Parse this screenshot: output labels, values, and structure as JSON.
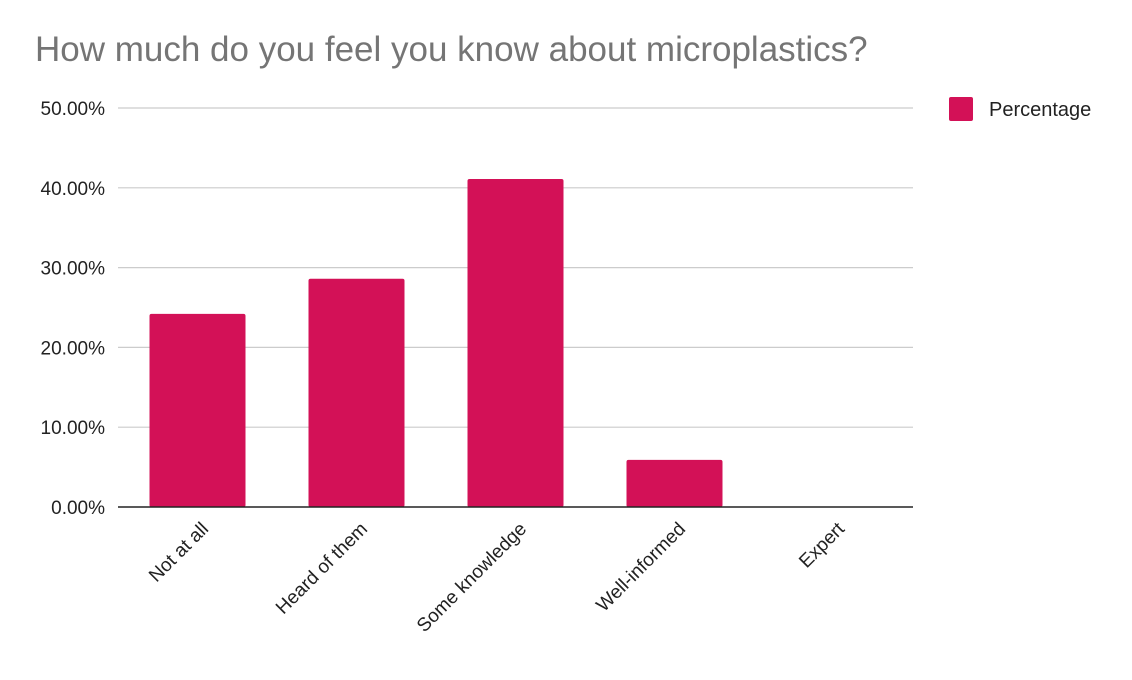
{
  "chart_data": {
    "type": "bar",
    "title": "How much do you feel you know about microplastics?",
    "categories": [
      "Not at all",
      "Heard of them",
      "Some knowledge",
      "Well-informed",
      "Expert"
    ],
    "series": [
      {
        "name": "Percentage",
        "values": [
          24.2,
          28.6,
          41.1,
          5.9,
          0.0
        ],
        "color": "#d31157"
      }
    ],
    "yticks": [
      "0.00%",
      "10.00%",
      "20.00%",
      "30.00%",
      "40.00%",
      "50.00%"
    ],
    "ylim": [
      0,
      50
    ],
    "grid": true,
    "legend_position": "top-right"
  }
}
